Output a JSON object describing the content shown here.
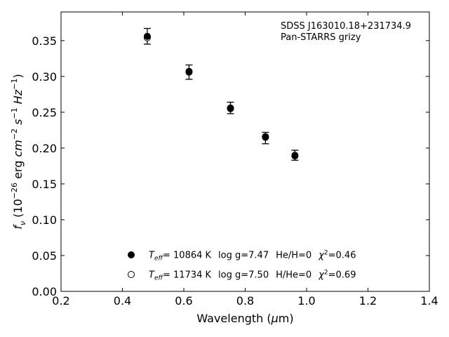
{
  "chart_data": {
    "type": "scatter",
    "xlabel": {
      "pre": "Wavelength (",
      "sym": "μ",
      "post": "m)"
    },
    "ylabel": "f_ν (10^-26 erg cm^-2 s^-1 Hz^-1)",
    "xlim": [
      0.2,
      1.4
    ],
    "ylim": [
      0.0,
      0.39
    ],
    "xticks": [
      "0.2",
      "0.4",
      "0.6",
      "0.8",
      "1.0",
      "1.2",
      "1.4"
    ],
    "yticks": [
      "0.00",
      "0.05",
      "0.10",
      "0.15",
      "0.20",
      "0.25",
      "0.30",
      "0.35"
    ],
    "grid": false,
    "annotation": [
      "SDSS J163010.18+231734.9",
      "Pan-STARRS grizy"
    ],
    "observed": {
      "x": [
        0.481,
        0.617,
        0.752,
        0.866,
        0.962
      ],
      "y": [
        0.356,
        0.306,
        0.256,
        0.214,
        0.19
      ],
      "yerr": [
        0.011,
        0.01,
        0.008,
        0.008,
        0.007
      ]
    },
    "series": [
      {
        "marker": "filled",
        "x": [
          0.481,
          0.617,
          0.752,
          0.866,
          0.962
        ],
        "y": [
          0.356,
          0.307,
          0.255,
          0.215,
          0.189
        ],
        "label": {
          "temp": "= 10864 K",
          "logg": "log g=7.47",
          "comp": "He/H=0",
          "chi": "=0.46"
        }
      },
      {
        "marker": "open",
        "x": [
          0.481,
          0.617,
          0.752,
          0.866,
          0.962
        ],
        "y": [
          0.354,
          0.306,
          0.256,
          0.216,
          0.19
        ],
        "label": {
          "temp": "= 11734 K",
          "logg": "log g=7.50",
          "comp": "H/He=0",
          "chi": "=0.69"
        }
      }
    ],
    "legend_location": "lower-left"
  }
}
